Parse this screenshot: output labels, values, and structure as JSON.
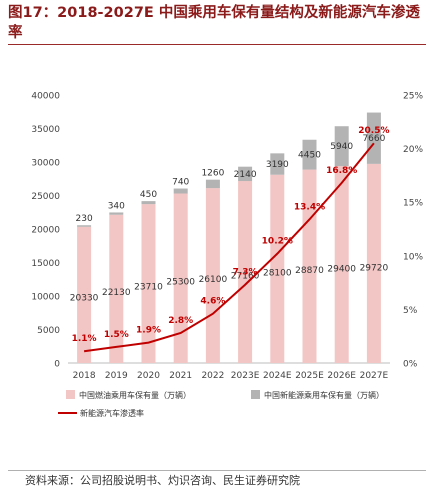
{
  "title": "图17：2018-2027E  中国乘用车保有量结构及新能源汽车渗透率",
  "source": "资料来源：公司招股说明书、灼识咨询、民生证券研究院",
  "chart_data": {
    "type": "bar",
    "stacked": true,
    "categories": [
      "2018",
      "2019",
      "2020",
      "2021",
      "2022",
      "2023E",
      "2024E",
      "2025E",
      "2026E",
      "2027E"
    ],
    "series": [
      {
        "name": "中国燃油乘用车保有量（万辆）",
        "values": [
          20330,
          22130,
          23710,
          25300,
          26100,
          27160,
          28100,
          28870,
          29400,
          29720
        ],
        "color": "#f2c6c4"
      },
      {
        "name": "中国新能源乘用车保有量（万辆）",
        "values": [
          230,
          340,
          450,
          740,
          1260,
          2140,
          3190,
          4450,
          5940,
          7660
        ],
        "color": "#b3b3b3"
      }
    ],
    "line_series": {
      "name": "新能源汽车渗透率",
      "values": [
        1.1,
        1.5,
        1.9,
        2.8,
        4.6,
        7.3,
        10.2,
        13.4,
        16.8,
        20.5
      ],
      "labels": [
        "1.1%",
        "1.5%",
        "1.9%",
        "2.8%",
        "4.6%",
        "7.3%",
        "10.2%",
        "13.4%",
        "16.8%",
        "20.5%"
      ],
      "color": "#c00000"
    },
    "y_left": {
      "min": 0,
      "max": 40000,
      "ticks": [
        "0",
        "5000",
        "10000",
        "15000",
        "20000",
        "25000",
        "30000",
        "35000",
        "40000"
      ]
    },
    "y_right": {
      "min": 0,
      "max": 25,
      "ticks": [
        "0%",
        "5%",
        "10%",
        "15%",
        "20%",
        "25%"
      ]
    },
    "legend_position": "bottom"
  }
}
